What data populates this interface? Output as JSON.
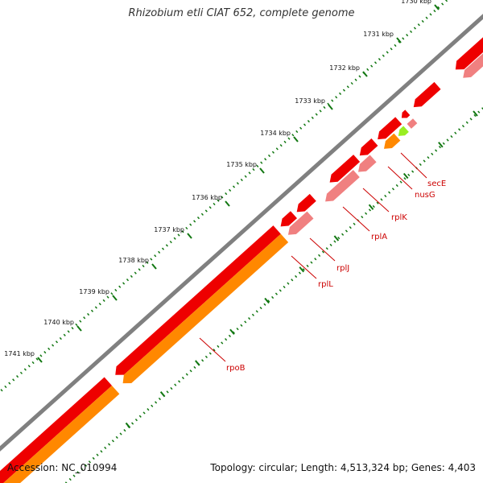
{
  "title": "Rhizobium etli CIAT 652, complete genome",
  "footer": {
    "accession": "Accession: NC_010994",
    "summary": "Topology: circular; Length: 4,513,324 bp; Genes: 4,403"
  },
  "scale_ticks": [
    "1730 kbp",
    "1731 kbp",
    "1732 kbp",
    "1733 kbp",
    "1734 kbp",
    "1735 kbp",
    "1736 kbp",
    "1737 kbp",
    "1738 kbp",
    "1739 kbp",
    "1740 kbp",
    "1741 kbp"
  ],
  "gene_labels": [
    "secE",
    "nusG",
    "rplK",
    "rplA",
    "rplJ",
    "rplL",
    "rpoB"
  ],
  "colors": {
    "backbone": "#808080",
    "cds": "#ee0000",
    "gene": "#ff8800",
    "rna": "#f08080",
    "misc": "#99ee22",
    "tick": "#117711",
    "label": "#cc0000"
  }
}
